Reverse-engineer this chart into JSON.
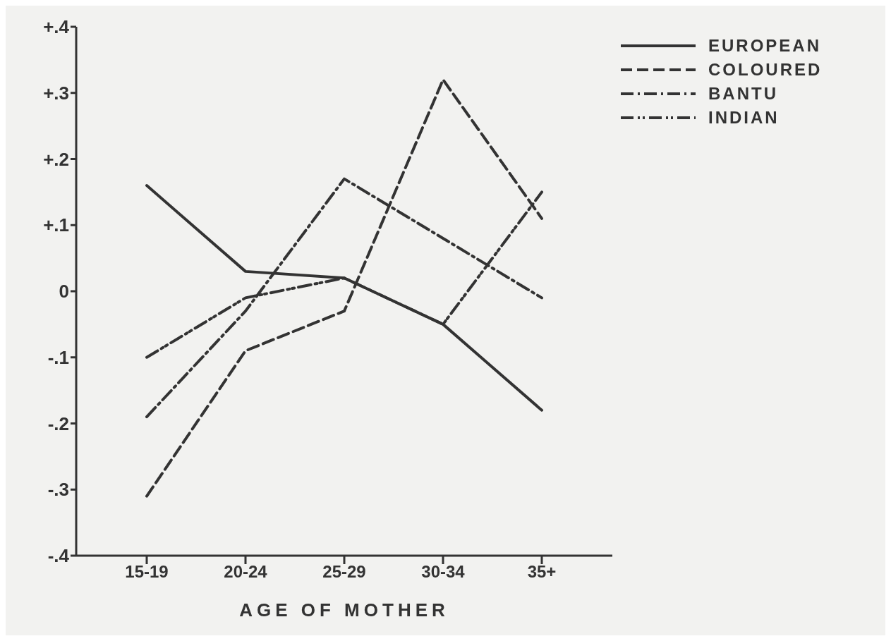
{
  "chart_data": {
    "type": "line",
    "xlabel": "AGE OF MOTHER",
    "categories": [
      "15-19",
      "20-24",
      "25-29",
      "30-34",
      "35+"
    ],
    "ylim": [
      -0.4,
      0.4
    ],
    "yticks": [
      {
        "value": 0.4,
        "label": "+.4"
      },
      {
        "value": 0.3,
        "label": "+.3"
      },
      {
        "value": 0.2,
        "label": "+.2"
      },
      {
        "value": 0.1,
        "label": "+.1"
      },
      {
        "value": 0,
        "label": "0"
      },
      {
        "value": -0.1,
        "label": "-.1"
      },
      {
        "value": -0.2,
        "label": "-.2"
      },
      {
        "value": -0.3,
        "label": "-.3"
      },
      {
        "value": -0.4,
        "label": "-.4"
      }
    ],
    "grid": false,
    "legend": "top right",
    "marker": "none",
    "series": [
      {
        "name": "EUROPEAN",
        "color": "#333333",
        "line_style": "solid",
        "values": [
          0.16,
          0.03,
          0.02,
          -0.05,
          -0.18
        ]
      },
      {
        "name": "COLOURED",
        "color": "#333333",
        "line_style": "dashed",
        "values": [
          -0.31,
          -0.09,
          -0.03,
          0.32,
          0.11
        ]
      },
      {
        "name": "BANTU",
        "color": "#333333",
        "line_style": "dashdot",
        "values": [
          -0.19,
          -0.03,
          0.17,
          0.08,
          -0.01
        ]
      },
      {
        "name": "INDIAN",
        "color": "#333333",
        "line_style": "dashdotdot",
        "values": [
          -0.1,
          -0.01,
          0.02,
          -0.05,
          0.15
        ]
      }
    ]
  }
}
